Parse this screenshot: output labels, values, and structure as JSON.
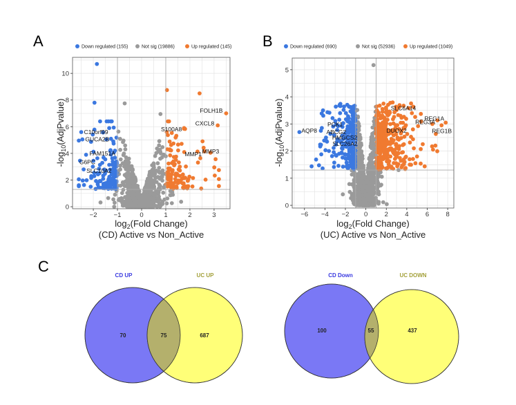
{
  "panels": {
    "a": "A",
    "b": "B",
    "c": "C"
  },
  "chart_data": [
    {
      "type": "scatter",
      "subtype": "volcano",
      "title": "",
      "xlabel": {
        "base": "log",
        "sub": "2",
        "rest": "(Fold Change)"
      },
      "xlabel2": "(CD) Active vs Non_Active",
      "ylabel": {
        "base": "-log",
        "sub": "10",
        "rest": "(AdjPvalue)"
      },
      "xlim": [
        -2.86,
        3.66
      ],
      "ylim": [
        -0.15,
        11.2
      ],
      "xticks": [
        -2,
        -1,
        0,
        1,
        2,
        3
      ],
      "yticks": [
        0,
        2,
        4,
        6,
        8,
        10
      ],
      "grid": true,
      "legend_position": "top",
      "thresholds": {
        "log2fc": [
          -1,
          1
        ],
        "neg_log10_p": 1.3
      },
      "legend": [
        {
          "label": "Down regulated (155)",
          "color": "#3b78e0"
        },
        {
          "label": "Not sig (19886)",
          "color": "#9a9a9a"
        },
        {
          "label": "Up regulated (145)",
          "color": "#f07a30"
        }
      ],
      "series": [
        {
          "name": "Down regulated",
          "count": 155,
          "color": "#3b78e0"
        },
        {
          "name": "Not sig",
          "count": 19886,
          "color": "#9a9a9a"
        },
        {
          "name": "Up regulated",
          "count": 145,
          "color": "#f07a30"
        }
      ],
      "labeled_genes": [
        {
          "name": "FOLH1B",
          "x": 3.5,
          "y": 7.0,
          "group": "up"
        },
        {
          "name": "CXCL8",
          "x": 3.15,
          "y": 6.1,
          "group": "up"
        },
        {
          "name": "S100A8",
          "x": 1.75,
          "y": 5.85,
          "group": "up"
        },
        {
          "name": "MMP3",
          "x": 2.85,
          "y": 4.05,
          "group": "up"
        },
        {
          "name": "MMP1",
          "x": 2.6,
          "y": 4.15,
          "group": "up"
        },
        {
          "name": "C10orf99",
          "x": -2.5,
          "y": 5.6,
          "group": "down"
        },
        {
          "name": "GUCA2B",
          "x": -2.45,
          "y": 5.05,
          "group": "down"
        },
        {
          "name": "FAM151A",
          "x": -2.3,
          "y": 3.9,
          "group": "down"
        },
        {
          "name": "G6PC",
          "x": -2.55,
          "y": 3.45,
          "group": "down"
        },
        {
          "name": "SLC10A2",
          "x": -2.4,
          "y": 2.8,
          "group": "down"
        }
      ],
      "highlight_points": [
        {
          "x": -1.85,
          "y": 10.7,
          "group": "down"
        },
        {
          "x": -1.95,
          "y": 7.8,
          "group": "down"
        },
        {
          "x": 1.05,
          "y": 8.75,
          "group": "up"
        },
        {
          "x": 2.4,
          "y": 8.5,
          "group": "up"
        },
        {
          "x": -0.7,
          "y": 7.75,
          "group": "notsig"
        },
        {
          "x": 0.78,
          "y": 6.95,
          "group": "notsig"
        }
      ]
    },
    {
      "type": "scatter",
      "subtype": "volcano",
      "title": "",
      "xlabel": {
        "base": "log",
        "sub": "2",
        "rest": "(Fold Change)"
      },
      "xlabel2": "(UC) Active vs Non_Active",
      "ylabel": {
        "base": "-log",
        "sub": "10",
        "rest": "(AdjPvalue)"
      },
      "xlim": [
        -7.2,
        8.6
      ],
      "ylim": [
        -0.1,
        5.43
      ],
      "xticks": [
        -6,
        -4,
        -2,
        0,
        2,
        4,
        6,
        8
      ],
      "yticks": [
        0,
        1,
        2,
        3,
        4,
        5
      ],
      "grid": true,
      "legend_position": "top",
      "thresholds": {
        "log2fc": [
          -1,
          1
        ],
        "neg_log10_p": 1.3
      },
      "legend": [
        {
          "label": "Down regulated (690)",
          "color": "#3b78e0"
        },
        {
          "label": "Not sig (52936)",
          "color": "#9a9a9a"
        },
        {
          "label": "Up regulated (1049)",
          "color": "#f07a30"
        }
      ],
      "series": [
        {
          "name": "Down regulated",
          "count": 690,
          "color": "#3b78e0"
        },
        {
          "name": "Not sig",
          "count": 52936,
          "color": "#9a9a9a"
        },
        {
          "name": "Up regulated",
          "count": 1049,
          "color": "#f07a30"
        }
      ],
      "labeled_genes": [
        {
          "name": "REG1A",
          "x": 7.8,
          "y": 3.05,
          "group": "up"
        },
        {
          "name": "REG3A",
          "x": 6.5,
          "y": 3.0,
          "group": "up"
        },
        {
          "name": "REG1B",
          "x": 7.4,
          "y": 2.95,
          "group": "up"
        },
        {
          "name": "SLC6A14",
          "x": 4.5,
          "y": 3.4,
          "group": "up"
        },
        {
          "name": "DUOX2",
          "x": 4.6,
          "y": 2.8,
          "group": "up"
        },
        {
          "name": "AQP8",
          "x": -6.5,
          "y": 2.7,
          "group": "down"
        },
        {
          "name": "PCK1",
          "x": -4.3,
          "y": 2.85,
          "group": "down"
        },
        {
          "name": "ABCG2",
          "x": -4.4,
          "y": 2.75,
          "group": "down"
        },
        {
          "name": "HMGCS2",
          "x": -3.9,
          "y": 2.5,
          "group": "down"
        },
        {
          "name": "SLC26A2",
          "x": -3.8,
          "y": 2.35,
          "group": "down"
        }
      ],
      "highlight_points": [
        {
          "x": 0.75,
          "y": 5.17,
          "group": "notsig"
        },
        {
          "x": 2.4,
          "y": 1.8,
          "group": "up"
        },
        {
          "x": 5.0,
          "y": 1.8,
          "group": "up"
        },
        {
          "x": 3.2,
          "y": 1.3,
          "group": "notsig"
        }
      ]
    }
  ],
  "venn": [
    {
      "left_label": "CD UP",
      "right_label": "UC UP",
      "left_only": "70",
      "overlap": "75",
      "right_only": "687",
      "left_color": "#7a78f5",
      "right_color": "#ffff78",
      "overlap_color": "#b4b06c",
      "left_label_color": "#3838e0",
      "right_label_color": "#a3a03a"
    },
    {
      "left_label": "CD Down",
      "right_label": "UC DOWN",
      "left_only": "100",
      "overlap": "55",
      "right_only": "437",
      "left_color": "#7a78f5",
      "right_color": "#ffff78",
      "overlap_color": "#b4b06c",
      "left_label_color": "#3838e0",
      "right_label_color": "#a3a03a"
    }
  ]
}
